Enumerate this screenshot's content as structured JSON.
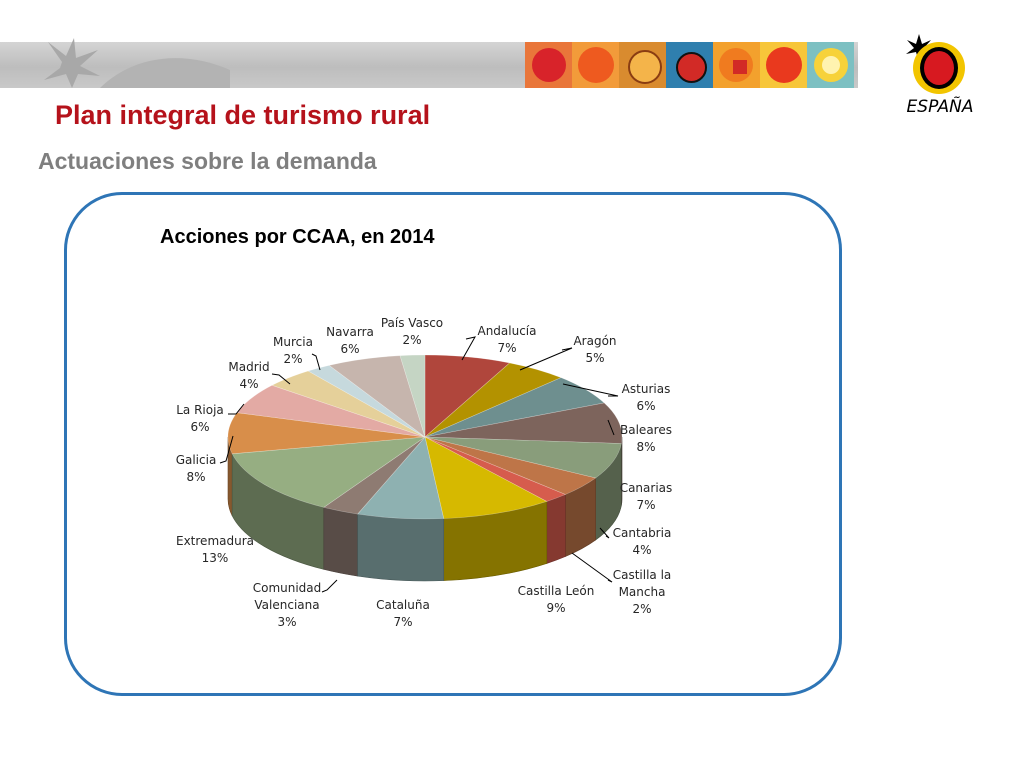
{
  "slide": {
    "title": "Plan integral de turismo rural",
    "subtitle": "Actuaciones sobre la demanda"
  },
  "banner": {
    "tile_icons": [
      "red-sun-icon",
      "orange-sun-icon",
      "shell-icon",
      "ladybug-icon",
      "red-square-sun-icon",
      "yellow-sun-icon",
      "starburst-sun-icon"
    ]
  },
  "logo": {
    "wordmark": "ESPAÑA",
    "colors": {
      "sun_red": "#d71920",
      "sun_yellow": "#f2c500",
      "star_black": "#000000"
    }
  },
  "colors": {
    "title": "#b5121b",
    "subtitle": "#7f7f7f",
    "panel_border": "#2e75b6"
  },
  "chart_data": {
    "type": "pie",
    "title": "Acciones por CCAA, en 2014",
    "style": "3d",
    "unit": "%",
    "legend": "none (data labels with leader lines)",
    "slices": [
      {
        "name": "Andalucía",
        "value": 7,
        "color": "#b0463c"
      },
      {
        "name": "Aragón",
        "value": 5,
        "color": "#b39200"
      },
      {
        "name": "Asturias",
        "value": 6,
        "color": "#6e8f8f"
      },
      {
        "name": "Baleares",
        "value": 8,
        "color": "#7d645c"
      },
      {
        "name": "Canarias",
        "value": 7,
        "color": "#899d7b"
      },
      {
        "name": "Cantabria",
        "value": 4,
        "color": "#be7548"
      },
      {
        "name": "Castilla la Mancha",
        "value": 2,
        "color": "#d65c4d"
      },
      {
        "name": "Castilla León",
        "value": 9,
        "color": "#d6b900"
      },
      {
        "name": "Cataluña",
        "value": 7,
        "color": "#8eb1b1"
      },
      {
        "name": "Comunidad Valenciana",
        "value": 3,
        "color": "#8e7b72"
      },
      {
        "name": "Extremadura",
        "value": 13,
        "color": "#96ae82"
      },
      {
        "name": "Galicia",
        "value": 8,
        "color": "#d88e4a"
      },
      {
        "name": "La Rioja",
        "value": 6,
        "color": "#e3aaa4"
      },
      {
        "name": "Madrid",
        "value": 4,
        "color": "#e5d09a"
      },
      {
        "name": "Murcia",
        "value": 2,
        "color": "#c6d9dd"
      },
      {
        "name": "Navarra",
        "value": 6,
        "color": "#c6b5ad"
      },
      {
        "name": "País Vasco",
        "value": 2,
        "color": "#c5d5c4"
      }
    ]
  }
}
